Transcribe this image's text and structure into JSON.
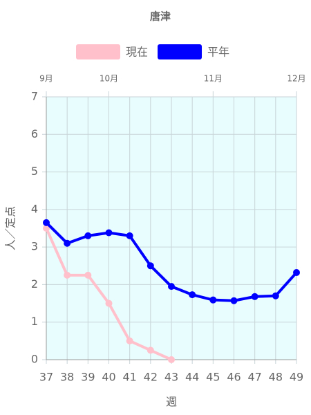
{
  "chart_data": {
    "type": "line",
    "title": "唐津",
    "x": [
      37,
      38,
      39,
      40,
      41,
      42,
      43,
      44,
      45,
      46,
      47,
      48,
      49
    ],
    "series": [
      {
        "name": "現在",
        "color": "#ffc0cb",
        "values": [
          3.5,
          2.25,
          2.25,
          1.5,
          0.5,
          0.25,
          0,
          null,
          null,
          null,
          null,
          null,
          null
        ]
      },
      {
        "name": "平年",
        "color": "#0000ff",
        "values": [
          3.65,
          3.1,
          3.3,
          3.38,
          3.3,
          2.5,
          1.95,
          1.73,
          1.59,
          1.57,
          1.68,
          1.7,
          2.32
        ]
      }
    ],
    "xlim": [
      37,
      49
    ],
    "xticks": [
      37,
      38,
      39,
      40,
      41,
      42,
      43,
      44,
      45,
      46,
      47,
      48,
      49
    ],
    "x2ticks": [
      {
        "value": 37,
        "label": "9月"
      },
      {
        "value": 40,
        "label": "10月"
      },
      {
        "value": 45,
        "label": "11月"
      },
      {
        "value": 49,
        "label": "12月"
      }
    ],
    "ylim": [
      0,
      7
    ],
    "yticks": [
      0,
      1,
      2,
      3,
      4,
      5,
      6,
      7
    ],
    "xlabel": "週",
    "ylabel": "人／定点",
    "grid": true,
    "legend": "top",
    "background": "#e8fdfd"
  }
}
